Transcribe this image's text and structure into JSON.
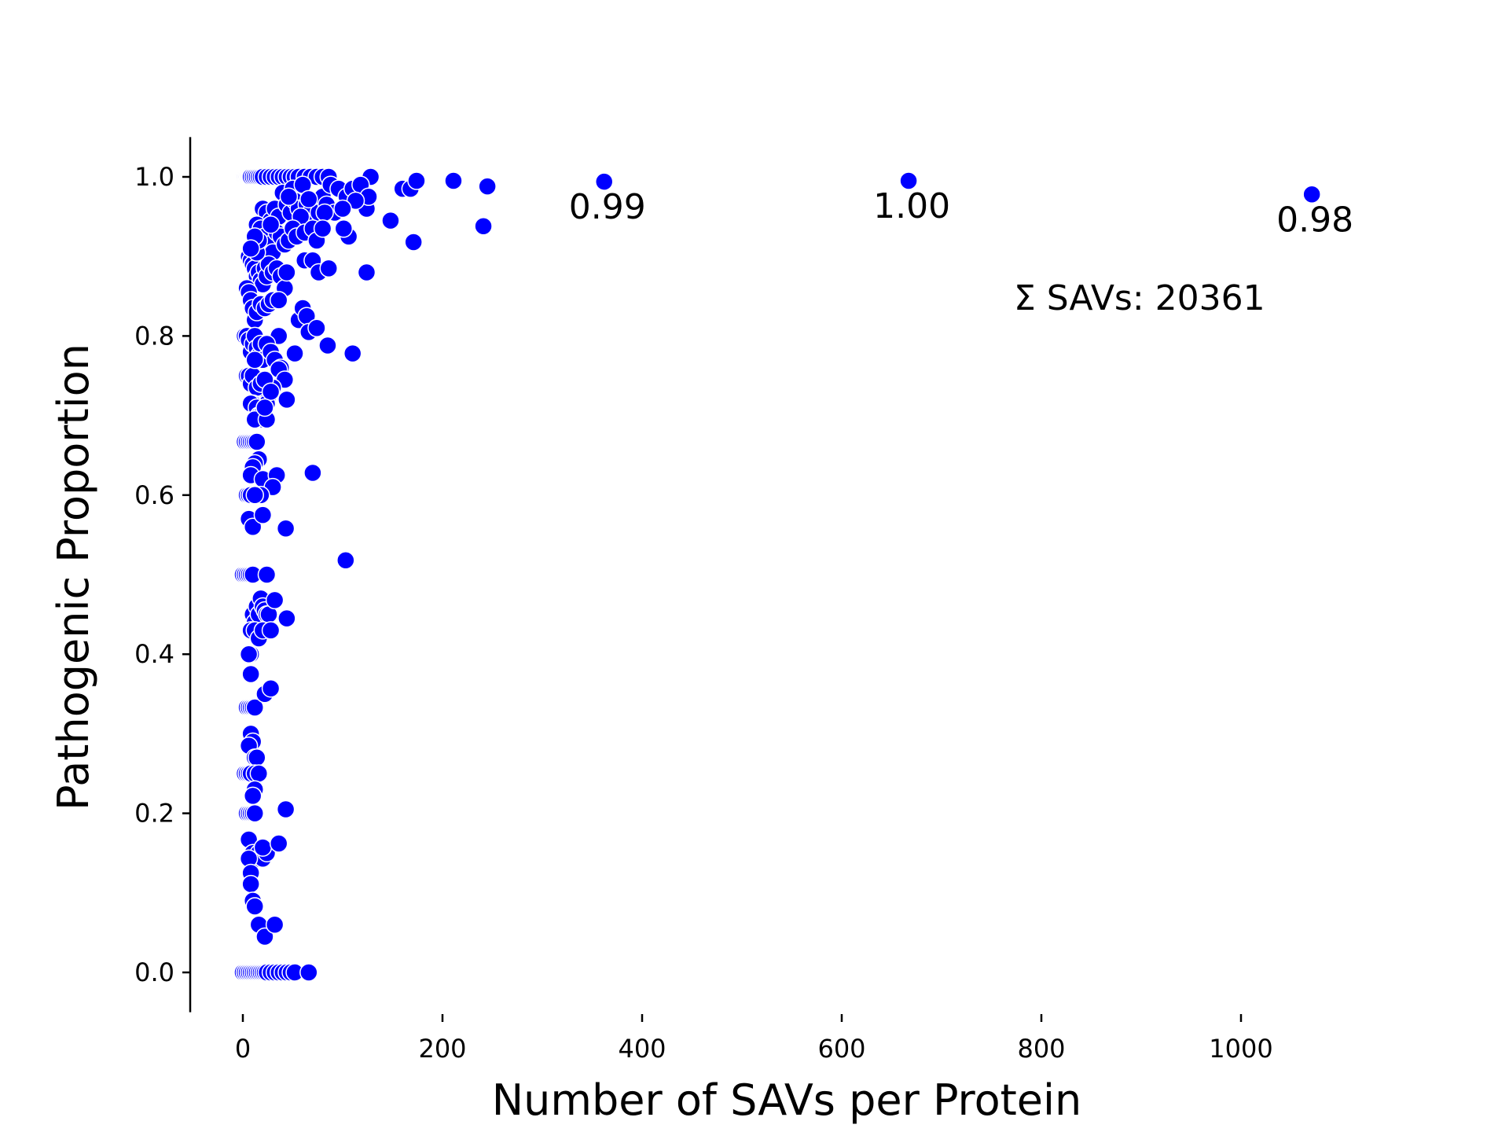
{
  "chart_data": {
    "type": "scatter",
    "title": "",
    "xlabel": "Number of SAVs per Protein",
    "ylabel": "Pathogenic Proportion",
    "xlim": [
      -50,
      1125
    ],
    "ylim": [
      -0.05,
      1.05
    ],
    "xticks": [
      0,
      200,
      400,
      600,
      800,
      1000
    ],
    "yticks": [
      0.0,
      0.2,
      0.4,
      0.6,
      0.8,
      1.0
    ],
    "xtick_labels": [
      "0",
      "200",
      "400",
      "600",
      "800",
      "1000"
    ],
    "ytick_labels": [
      "0.0",
      "0.2",
      "0.4",
      "0.6",
      "0.8",
      "1.0"
    ],
    "grid": false,
    "marker_color": "#0000ff",
    "marker_edge_color": "#ffffff",
    "points": [
      [
        1,
        1.0
      ],
      [
        2,
        1.0
      ],
      [
        3,
        1.0
      ],
      [
        4,
        1.0
      ],
      [
        5,
        1.0
      ],
      [
        6,
        1.0
      ],
      [
        7,
        1.0
      ],
      [
        8,
        1.0
      ],
      [
        10,
        1.0
      ],
      [
        12,
        1.0
      ],
      [
        14,
        1.0
      ],
      [
        16,
        1.0
      ],
      [
        18,
        1.0
      ],
      [
        20,
        1.0
      ],
      [
        24,
        1.0
      ],
      [
        28,
        1.0
      ],
      [
        32,
        1.0
      ],
      [
        36,
        1.0
      ],
      [
        40,
        1.0
      ],
      [
        44,
        1.0
      ],
      [
        48,
        1.0
      ],
      [
        52,
        1.0
      ],
      [
        56,
        1.0
      ],
      [
        62,
        1.0
      ],
      [
        68,
        1.0
      ],
      [
        74,
        1.0
      ],
      [
        80,
        1.0
      ],
      [
        86,
        1.0
      ],
      [
        128,
        1.0
      ],
      [
        40,
        0.98
      ],
      [
        50,
        0.985
      ],
      [
        60,
        0.99
      ],
      [
        70,
        0.97
      ],
      [
        80,
        0.975
      ],
      [
        88,
        0.99
      ],
      [
        96,
        0.985
      ],
      [
        104,
        0.975
      ],
      [
        110,
        0.985
      ],
      [
        118,
        0.99
      ],
      [
        124,
        0.96
      ],
      [
        126,
        0.975
      ],
      [
        160,
        0.985
      ],
      [
        168,
        0.985
      ],
      [
        174,
        0.995
      ],
      [
        211,
        0.995
      ],
      [
        245,
        0.988
      ],
      [
        241,
        0.938
      ],
      [
        148,
        0.945
      ],
      [
        171,
        0.918
      ],
      [
        124,
        0.88
      ],
      [
        113,
        0.97
      ],
      [
        106,
        0.925
      ],
      [
        101,
        0.935
      ],
      [
        20,
        0.96
      ],
      [
        24,
        0.955
      ],
      [
        28,
        0.945
      ],
      [
        32,
        0.96
      ],
      [
        36,
        0.95
      ],
      [
        44,
        0.965
      ],
      [
        48,
        0.955
      ],
      [
        52,
        0.97
      ],
      [
        56,
        0.96
      ],
      [
        60,
        0.95
      ],
      [
        64,
        0.965
      ],
      [
        68,
        0.955
      ],
      [
        72,
        0.945
      ],
      [
        76,
        0.955
      ],
      [
        84,
        0.965
      ],
      [
        92,
        0.955
      ],
      [
        100,
        0.96
      ],
      [
        46,
        0.975
      ],
      [
        58,
        0.95
      ],
      [
        66,
        0.972
      ],
      [
        82,
        0.955
      ],
      [
        14,
        0.94
      ],
      [
        18,
        0.935
      ],
      [
        22,
        0.925
      ],
      [
        26,
        0.915
      ],
      [
        30,
        0.905
      ],
      [
        34,
        0.93
      ],
      [
        38,
        0.925
      ],
      [
        42,
        0.915
      ],
      [
        46,
        0.92
      ],
      [
        50,
        0.935
      ],
      [
        54,
        0.925
      ],
      [
        62,
        0.93
      ],
      [
        70,
        0.935
      ],
      [
        74,
        0.92
      ],
      [
        80,
        0.935
      ],
      [
        28,
        0.94
      ],
      [
        6,
        0.9
      ],
      [
        8,
        0.895
      ],
      [
        10,
        0.89
      ],
      [
        12,
        0.885
      ],
      [
        14,
        0.875
      ],
      [
        16,
        0.88
      ],
      [
        18,
        0.87
      ],
      [
        20,
        0.865
      ],
      [
        22,
        0.885
      ],
      [
        24,
        0.875
      ],
      [
        26,
        0.89
      ],
      [
        30,
        0.88
      ],
      [
        34,
        0.885
      ],
      [
        38,
        0.875
      ],
      [
        42,
        0.86
      ],
      [
        44,
        0.88
      ],
      [
        62,
        0.895
      ],
      [
        70,
        0.895
      ],
      [
        76,
        0.88
      ],
      [
        86,
        0.885
      ],
      [
        14,
        0.905
      ],
      [
        16,
        0.92
      ],
      [
        12,
        0.925
      ],
      [
        8,
        0.91
      ],
      [
        4,
        0.86
      ],
      [
        6,
        0.855
      ],
      [
        8,
        0.845
      ],
      [
        10,
        0.835
      ],
      [
        12,
        0.82
      ],
      [
        14,
        0.83
      ],
      [
        18,
        0.84
      ],
      [
        22,
        0.835
      ],
      [
        26,
        0.84
      ],
      [
        30,
        0.845
      ],
      [
        36,
        0.845
      ],
      [
        56,
        0.82
      ],
      [
        60,
        0.835
      ],
      [
        64,
        0.825
      ],
      [
        66,
        0.805
      ],
      [
        74,
        0.81
      ],
      [
        85,
        0.788
      ],
      [
        110,
        0.778
      ],
      [
        52,
        0.778
      ],
      [
        36,
        0.8
      ],
      [
        2,
        0.8
      ],
      [
        4,
        0.8
      ],
      [
        6,
        0.795
      ],
      [
        8,
        0.78
      ],
      [
        10,
        0.79
      ],
      [
        12,
        0.8
      ],
      [
        14,
        0.785
      ],
      [
        16,
        0.775
      ],
      [
        18,
        0.79
      ],
      [
        20,
        0.77
      ],
      [
        24,
        0.79
      ],
      [
        28,
        0.78
      ],
      [
        32,
        0.77
      ],
      [
        38,
        0.76
      ],
      [
        36,
        0.758
      ],
      [
        42,
        0.745
      ],
      [
        44,
        0.72
      ],
      [
        30,
        0.735
      ],
      [
        26,
        0.725
      ],
      [
        4,
        0.75
      ],
      [
        6,
        0.75
      ],
      [
        8,
        0.74
      ],
      [
        10,
        0.75
      ],
      [
        12,
        0.77
      ],
      [
        14,
        0.735
      ],
      [
        18,
        0.74
      ],
      [
        22,
        0.745
      ],
      [
        24,
        0.715
      ],
      [
        28,
        0.73
      ],
      [
        10,
        0.715
      ],
      [
        8,
        0.715
      ],
      [
        14,
        0.71
      ],
      [
        16,
        0.7
      ],
      [
        18,
        0.7
      ],
      [
        20,
        0.695
      ],
      [
        12,
        0.695
      ],
      [
        24,
        0.695
      ],
      [
        22,
        0.71
      ],
      [
        2,
        0.667
      ],
      [
        4,
        0.667
      ],
      [
        6,
        0.667
      ],
      [
        8,
        0.667
      ],
      [
        10,
        0.667
      ],
      [
        12,
        0.667
      ],
      [
        14,
        0.667
      ],
      [
        16,
        0.645
      ],
      [
        12,
        0.64
      ],
      [
        10,
        0.635
      ],
      [
        8,
        0.625
      ],
      [
        20,
        0.62
      ],
      [
        34,
        0.625
      ],
      [
        30,
        0.61
      ],
      [
        70,
        0.628
      ],
      [
        4,
        0.6
      ],
      [
        6,
        0.6
      ],
      [
        8,
        0.6
      ],
      [
        14,
        0.6
      ],
      [
        18,
        0.6
      ],
      [
        12,
        0.6
      ],
      [
        6,
        0.57
      ],
      [
        10,
        0.56
      ],
      [
        20,
        0.575
      ],
      [
        43,
        0.558
      ],
      [
        103,
        0.518
      ],
      [
        0,
        0.5
      ],
      [
        2,
        0.5
      ],
      [
        4,
        0.5
      ],
      [
        6,
        0.5
      ],
      [
        8,
        0.5
      ],
      [
        10,
        0.5
      ],
      [
        24,
        0.5
      ],
      [
        10,
        0.45
      ],
      [
        12,
        0.44
      ],
      [
        14,
        0.46
      ],
      [
        16,
        0.45
      ],
      [
        18,
        0.47
      ],
      [
        20,
        0.46
      ],
      [
        22,
        0.455
      ],
      [
        24,
        0.45
      ],
      [
        26,
        0.45
      ],
      [
        32,
        0.468
      ],
      [
        44,
        0.445
      ],
      [
        8,
        0.43
      ],
      [
        12,
        0.43
      ],
      [
        16,
        0.42
      ],
      [
        20,
        0.43
      ],
      [
        28,
        0.43
      ],
      [
        8,
        0.4
      ],
      [
        6,
        0.4
      ],
      [
        8,
        0.375
      ],
      [
        4,
        0.333
      ],
      [
        6,
        0.333
      ],
      [
        8,
        0.333
      ],
      [
        10,
        0.333
      ],
      [
        12,
        0.333
      ],
      [
        22,
        0.35
      ],
      [
        28,
        0.357
      ],
      [
        8,
        0.3
      ],
      [
        10,
        0.29
      ],
      [
        6,
        0.285
      ],
      [
        12,
        0.27
      ],
      [
        14,
        0.27
      ],
      [
        2,
        0.25
      ],
      [
        4,
        0.25
      ],
      [
        6,
        0.25
      ],
      [
        8,
        0.25
      ],
      [
        12,
        0.25
      ],
      [
        16,
        0.25
      ],
      [
        12,
        0.23
      ],
      [
        10,
        0.222
      ],
      [
        4,
        0.2
      ],
      [
        6,
        0.2
      ],
      [
        8,
        0.2
      ],
      [
        10,
        0.2
      ],
      [
        12,
        0.2
      ],
      [
        43,
        0.205
      ],
      [
        6,
        0.167
      ],
      [
        10,
        0.15
      ],
      [
        12,
        0.142
      ],
      [
        16,
        0.15
      ],
      [
        20,
        0.143
      ],
      [
        24,
        0.15
      ],
      [
        20,
        0.157
      ],
      [
        36,
        0.162
      ],
      [
        6,
        0.143
      ],
      [
        8,
        0.125
      ],
      [
        8,
        0.111
      ],
      [
        10,
        0.09
      ],
      [
        12,
        0.083
      ],
      [
        16,
        0.06
      ],
      [
        22,
        0.045
      ],
      [
        32,
        0.06
      ],
      [
        0,
        0
      ],
      [
        2,
        0
      ],
      [
        4,
        0
      ],
      [
        6,
        0
      ],
      [
        8,
        0
      ],
      [
        10,
        0
      ],
      [
        12,
        0
      ],
      [
        14,
        0
      ],
      [
        16,
        0
      ],
      [
        18,
        0
      ],
      [
        20,
        0
      ],
      [
        22,
        0
      ],
      [
        24,
        0
      ],
      [
        28,
        0
      ],
      [
        32,
        0
      ],
      [
        36,
        0
      ],
      [
        40,
        0
      ],
      [
        44,
        0
      ],
      [
        48,
        0
      ],
      [
        52,
        0
      ],
      [
        66,
        0
      ]
    ],
    "labeled_points": [
      {
        "x": 362,
        "y": 0.994,
        "label": "0.99"
      },
      {
        "x": 667,
        "y": 0.995,
        "label": "1.00"
      },
      {
        "x": 1071,
        "y": 0.978,
        "label": "0.98"
      }
    ],
    "annotation": "Σ SAVs: 20361"
  }
}
